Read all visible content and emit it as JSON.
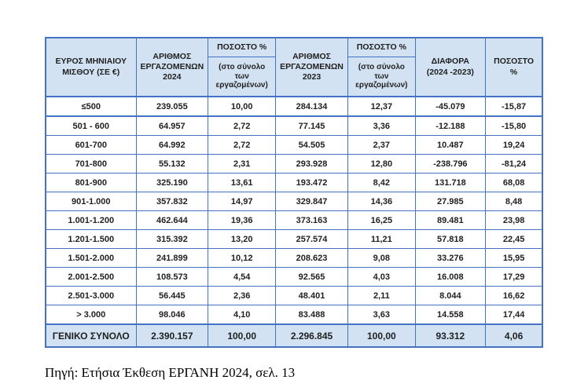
{
  "colors": {
    "table_border": "#4472c4",
    "header_fill": "#d3e2f2",
    "total_row_fill": "#d3e2f2",
    "row_fill": "#ffffff",
    "text": "#1f1f1f"
  },
  "table": {
    "columns": [
      {
        "label": "ΕΥΡΟΣ ΜΗΝΙΑΙΟΥ ΜΙΣΘΟΥ (ΣΕ €)"
      },
      {
        "label": "ΑΡΙΘΜΟΣ ΕΡΓΑΖΟΜΕΝΩΝ 2024"
      },
      {
        "label": "ΠΟΣΟΣΤΟ %",
        "sub": "(στο σύνολο των εργαζομένων)"
      },
      {
        "label": "ΑΡΙΘΜΟΣ ΕΡΓΑΖΟΜΕΝΩΝ 2023"
      },
      {
        "label": "ΠΟΣΟΣΤΟ %",
        "sub": "(στο σύνολο των εργαζομένων)"
      },
      {
        "label": "ΔΙΑΦΟΡΑ (2024 -2023)"
      },
      {
        "label": "ΠΟΣΟΣΤΟ %"
      }
    ],
    "rows": [
      {
        "range": "≤500",
        "values": [
          "239.055",
          "10,00",
          "284.134",
          "12,37",
          "-45.079",
          "-15,87"
        ]
      },
      {
        "range": "501 - 600",
        "values": [
          "64.957",
          "2,72",
          "77.145",
          "3,36",
          "-12.188",
          "-15,80"
        ]
      },
      {
        "range": "601-700",
        "values": [
          "64.992",
          "2,72",
          "54.505",
          "2,37",
          "10.487",
          "19,24"
        ]
      },
      {
        "range": "701-800",
        "values": [
          "55.132",
          "2,31",
          "293.928",
          "12,80",
          "-238.796",
          "-81,24"
        ]
      },
      {
        "range": "801-900",
        "values": [
          "325.190",
          "13,61",
          "193.472",
          "8,42",
          "131.718",
          "68,08"
        ]
      },
      {
        "range": "901-1.000",
        "values": [
          "357.832",
          "14,97",
          "329.847",
          "14,36",
          "27.985",
          "8,48"
        ]
      },
      {
        "range": "1.001-1.200",
        "values": [
          "462.644",
          "19,36",
          "373.163",
          "16,25",
          "89.481",
          "23,98"
        ]
      },
      {
        "range": "1.201-1.500",
        "values": [
          "315.392",
          "13,20",
          "257.574",
          "11,21",
          "57.818",
          "22,45"
        ]
      },
      {
        "range": "1.501-2.000",
        "values": [
          "241.899",
          "10,12",
          "208.623",
          "9,08",
          "33.276",
          "15,95"
        ]
      },
      {
        "range": "2.001-2.500",
        "values": [
          "108.573",
          "4,54",
          "92.565",
          "4,03",
          "16.008",
          "17,29"
        ]
      },
      {
        "range": "2.501-3.000",
        "values": [
          "56.445",
          "2,36",
          "48.401",
          "2,11",
          "8.044",
          "16,62"
        ]
      },
      {
        "range": "> 3.000",
        "values": [
          "98.046",
          "4,10",
          "83.488",
          "3,63",
          "14.558",
          "17,44"
        ]
      }
    ],
    "total_row": {
      "label": "ΓΕΝΙΚΟ ΣΥΝΟΛΟ",
      "values": [
        "2.390.157",
        "100,00",
        "2.296.845",
        "100,00",
        "93.312",
        "4,06"
      ]
    }
  },
  "source_note": "Πηγή: Ετήσια Έκθεση ΕΡΓΑΝΗ 2024, σελ. 13"
}
